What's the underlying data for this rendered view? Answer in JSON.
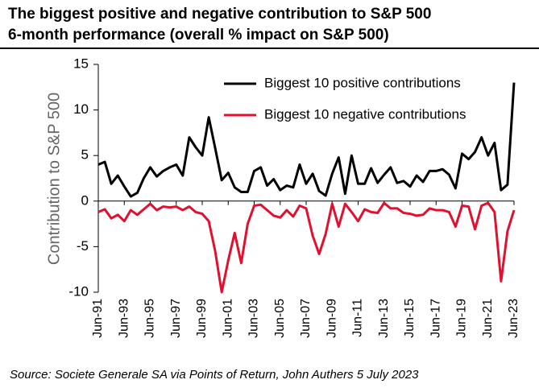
{
  "chart_data": {
    "type": "line",
    "title": "The biggest positive and negative contribution to S&P 500",
    "subtitle": "6-month performance (overall % impact on S&P 500)",
    "y_label": "Contribution to S&P 500",
    "source": "Source: Societe Generale SA via Points of Return, John Authers 5 July 2023",
    "categories": [
      "Jun-91",
      null,
      null,
      null,
      "Jun-93",
      null,
      null,
      null,
      "Jun-95",
      null,
      null,
      null,
      "Jun-97",
      null,
      null,
      null,
      "Jun-99",
      null,
      null,
      null,
      "Jun-01",
      null,
      null,
      null,
      "Jun-03",
      null,
      null,
      null,
      "Jun-05",
      null,
      null,
      null,
      "Jun-07",
      null,
      null,
      null,
      "Jun-09",
      null,
      null,
      null,
      "Jun-11",
      null,
      null,
      null,
      "Jun-13",
      null,
      null,
      null,
      "Jun-15",
      null,
      null,
      null,
      "Jun-17",
      null,
      null,
      null,
      "Jun-19",
      null,
      null,
      null,
      "Jun-21",
      null,
      null,
      null,
      "Jun-23"
    ],
    "series": [
      {
        "name": "Biggest 10 positive contributions",
        "color": "#000000",
        "values": [
          4.0,
          4.3,
          1.9,
          2.8,
          1.6,
          0.5,
          0.9,
          2.5,
          3.7,
          2.7,
          3.3,
          3.7,
          4.0,
          2.8,
          7.0,
          5.9,
          5.0,
          9.2,
          5.8,
          2.3,
          3.1,
          1.5,
          1.0,
          1.0,
          3.3,
          3.7,
          1.7,
          2.4,
          1.2,
          1.7,
          1.5,
          4.0,
          1.9,
          3.0,
          1.1,
          0.6,
          3.0,
          4.8,
          0.8,
          5.0,
          1.9,
          1.9,
          3.6,
          2.0,
          2.9,
          3.7,
          2.0,
          2.2,
          1.6,
          2.8,
          2.1,
          3.3,
          3.3,
          3.5,
          2.9,
          1.4,
          5.2,
          4.6,
          5.4,
          7.0,
          5.0,
          6.4,
          1.2,
          1.8,
          13.0
        ]
      },
      {
        "name": "Biggest 10 negative contributions",
        "color": "#e0102e",
        "values": [
          -1.2,
          -0.9,
          -1.9,
          -1.5,
          -2.2,
          -1.0,
          -1.5,
          -0.9,
          -0.3,
          -1.0,
          -0.6,
          -0.7,
          -0.6,
          -1.0,
          -0.6,
          -1.2,
          -1.4,
          -2.2,
          -5.5,
          -10.0,
          -6.5,
          -3.5,
          -6.8,
          -2.5,
          -0.5,
          -0.4,
          -1.0,
          -1.6,
          -1.8,
          -1.0,
          -1.7,
          -0.5,
          -0.8,
          -3.8,
          -5.8,
          -3.6,
          -0.3,
          -2.8,
          -0.3,
          -1.2,
          -2.2,
          -0.9,
          -1.2,
          -1.3,
          -0.2,
          -0.8,
          -0.8,
          -1.3,
          -1.4,
          -1.6,
          -1.5,
          -0.8,
          -1.0,
          -1.0,
          -1.2,
          -2.8,
          -0.5,
          -0.6,
          -3.1,
          -0.5,
          -0.2,
          -1.2,
          -8.8,
          -3.3,
          -1.0
        ]
      }
    ],
    "ylim": [
      -10,
      15
    ],
    "yticks": [
      -10,
      -5,
      0,
      5,
      10,
      15
    ],
    "grid": false
  }
}
